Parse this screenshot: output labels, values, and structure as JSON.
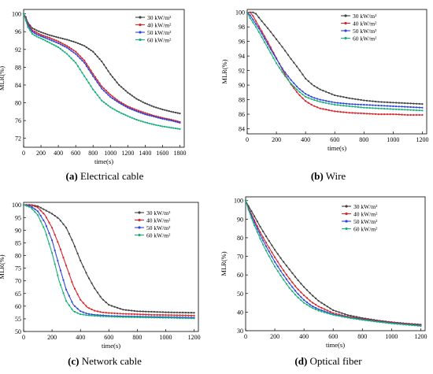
{
  "colors": {
    "30": "#404040",
    "40": "#d6262a",
    "50": "#2f45d8",
    "60": "#18b07a"
  },
  "chart_data": [
    {
      "type": "line",
      "panel_letter": "(a)",
      "caption": "Electrical cable",
      "xlabel": "time(s)",
      "ylabel": "MLR(%)",
      "xlim": [
        0,
        1850
      ],
      "ylim": [
        70,
        101
      ],
      "xticks": [
        0,
        200,
        400,
        600,
        800,
        1000,
        1200,
        1400,
        1600,
        1800
      ],
      "yticks": [
        72,
        76,
        80,
        84,
        88,
        92,
        96,
        100
      ],
      "legend_position": "top-right",
      "series": [
        {
          "name": "30 kW/m²",
          "color_key": "30",
          "x": [
            0,
            25,
            50,
            100,
            150,
            200,
            300,
            400,
            500,
            600,
            700,
            800,
            900,
            1000,
            1100,
            1200,
            1300,
            1400,
            1500,
            1600,
            1700,
            1800
          ],
          "y": [
            100,
            99.3,
            98,
            96.8,
            96.3,
            95.9,
            95.2,
            94.7,
            94.2,
            93.6,
            92.8,
            91.5,
            89.3,
            86.4,
            84.0,
            82.3,
            80.9,
            79.9,
            79.1,
            78.5,
            78.0,
            77.6
          ]
        },
        {
          "name": "40 kW/m²",
          "color_key": "40",
          "x": [
            0,
            25,
            50,
            100,
            150,
            200,
            300,
            400,
            500,
            600,
            700,
            800,
            900,
            1000,
            1100,
            1200,
            1300,
            1400,
            1500,
            1600,
            1700,
            1800
          ],
          "y": [
            100,
            99.0,
            97.7,
            96.3,
            95.8,
            95.3,
            94.6,
            93.8,
            92.8,
            91.5,
            89.5,
            86.5,
            83.7,
            81.8,
            80.3,
            79.2,
            78.4,
            77.7,
            77.1,
            76.6,
            76.2,
            75.7
          ]
        },
        {
          "name": "50 kW/m²",
          "color_key": "50",
          "x": [
            0,
            25,
            50,
            100,
            150,
            200,
            300,
            400,
            500,
            600,
            700,
            800,
            900,
            1000,
            1100,
            1200,
            1300,
            1400,
            1500,
            1600,
            1700,
            1800
          ],
          "y": [
            100,
            98.8,
            97.4,
            96.0,
            95.4,
            95.0,
            94.2,
            93.4,
            92.4,
            91.0,
            89.0,
            86.0,
            83.2,
            81.3,
            80.0,
            78.9,
            78.1,
            77.4,
            76.9,
            76.4,
            76.0,
            75.5
          ]
        },
        {
          "name": "60 kW/m²",
          "color_key": "60",
          "x": [
            0,
            25,
            50,
            100,
            150,
            200,
            300,
            400,
            500,
            600,
            700,
            800,
            900,
            1000,
            1100,
            1200,
            1300,
            1400,
            1500,
            1600,
            1700,
            1800
          ],
          "y": [
            100,
            98.5,
            97.0,
            95.5,
            94.9,
            94.5,
            93.5,
            92.5,
            91.0,
            89.0,
            86.0,
            83.0,
            80.5,
            79.0,
            77.9,
            77.0,
            76.2,
            75.6,
            75.1,
            74.7,
            74.4,
            74.1
          ]
        }
      ]
    },
    {
      "type": "line",
      "panel_letter": "(b)",
      "caption": "Wire",
      "xlabel": "time(s)",
      "ylabel": "MLR(%)",
      "xlim": [
        0,
        1230
      ],
      "ylim": [
        83.3,
        100.4
      ],
      "xticks": [
        0,
        200,
        400,
        600,
        800,
        1000,
        1200
      ],
      "yticks": [
        84,
        86,
        88,
        90,
        92,
        94,
        96,
        98,
        100
      ],
      "legend_position": "top-right",
      "series": [
        {
          "name": "30 kW/m²",
          "color_key": "30",
          "x": [
            0,
            20,
            40,
            60,
            80,
            100,
            150,
            200,
            250,
            300,
            350,
            400,
            450,
            500,
            600,
            700,
            800,
            900,
            1000,
            1100,
            1200
          ],
          "y": [
            100,
            100,
            100,
            99.8,
            99.3,
            98.8,
            97.6,
            96.3,
            95.0,
            93.6,
            92.3,
            90.9,
            90.0,
            89.4,
            88.6,
            88.2,
            87.9,
            87.7,
            87.6,
            87.5,
            87.4
          ]
        },
        {
          "name": "40 kW/m²",
          "color_key": "40",
          "x": [
            0,
            20,
            40,
            60,
            80,
            100,
            150,
            200,
            250,
            300,
            350,
            400,
            450,
            500,
            600,
            700,
            800,
            900,
            1000,
            1100,
            1200
          ],
          "y": [
            100,
            100,
            99.5,
            98.8,
            98.1,
            97.4,
            95.6,
            93.7,
            91.8,
            90.1,
            88.8,
            87.8,
            87.2,
            86.8,
            86.4,
            86.2,
            86.1,
            86.0,
            86.0,
            85.9,
            85.9
          ]
        },
        {
          "name": "50 kW/m²",
          "color_key": "50",
          "x": [
            0,
            20,
            40,
            60,
            80,
            100,
            150,
            200,
            250,
            300,
            350,
            400,
            450,
            500,
            600,
            700,
            800,
            900,
            1000,
            1100,
            1200
          ],
          "y": [
            100,
            99.6,
            99.0,
            98.4,
            97.8,
            97.1,
            95.3,
            93.6,
            92.0,
            90.7,
            89.6,
            88.8,
            88.3,
            88.0,
            87.6,
            87.4,
            87.3,
            87.2,
            87.1,
            87.0,
            86.9
          ]
        },
        {
          "name": "60 kW/m²",
          "color_key": "60",
          "x": [
            0,
            20,
            40,
            60,
            80,
            100,
            150,
            200,
            250,
            300,
            350,
            400,
            450,
            500,
            600,
            700,
            800,
            900,
            1000,
            1100,
            1200
          ],
          "y": [
            100,
            99.2,
            98.6,
            98.0,
            97.3,
            96.6,
            94.8,
            93.0,
            91.5,
            90.2,
            89.2,
            88.4,
            88.0,
            87.7,
            87.3,
            87.1,
            86.9,
            86.8,
            86.7,
            86.6,
            86.5
          ]
        }
      ]
    },
    {
      "type": "line",
      "panel_letter": "(c)",
      "caption": "Network cable",
      "xlabel": "time(s)",
      "ylabel": "MLR(%)",
      "xlim": [
        0,
        1230
      ],
      "ylim": [
        50,
        101
      ],
      "xticks": [
        0,
        200,
        400,
        600,
        800,
        1000,
        1200
      ],
      "yticks": [
        50,
        55,
        60,
        65,
        70,
        75,
        80,
        85,
        90,
        95,
        100
      ],
      "legend_position": "top-right",
      "series": [
        {
          "name": "30 kW/m²",
          "color_key": "30",
          "x": [
            0,
            50,
            100,
            150,
            200,
            250,
            300,
            350,
            400,
            450,
            500,
            550,
            600,
            700,
            800,
            900,
            1000,
            1100,
            1200
          ],
          "y": [
            100,
            100,
            99.5,
            98.0,
            96.5,
            94.5,
            91.0,
            85.0,
            78.0,
            72.0,
            67.0,
            63.0,
            60.5,
            58.6,
            58.0,
            57.8,
            57.6,
            57.5,
            57.4
          ]
        },
        {
          "name": "40 kW/m²",
          "color_key": "40",
          "x": [
            0,
            50,
            100,
            150,
            200,
            250,
            300,
            350,
            400,
            450,
            500,
            550,
            600,
            700,
            800,
            900,
            1000,
            1100,
            1200
          ],
          "y": [
            100,
            100,
            99.0,
            96.0,
            91.0,
            84.0,
            76.0,
            68.0,
            62.5,
            59.5,
            58.2,
            57.6,
            57.3,
            57.0,
            56.8,
            56.6,
            56.5,
            56.4,
            56.3
          ]
        },
        {
          "name": "50 kW/m²",
          "color_key": "50",
          "x": [
            0,
            50,
            100,
            150,
            200,
            250,
            300,
            350,
            400,
            450,
            500,
            550,
            600,
            700,
            800,
            900,
            1000,
            1100,
            1200
          ],
          "y": [
            100,
            99.5,
            97.5,
            93.0,
            86.0,
            76.0,
            66.5,
            60.5,
            58.0,
            57.0,
            56.6,
            56.4,
            56.2,
            56.0,
            55.9,
            55.8,
            55.7,
            55.6,
            55.5
          ]
        },
        {
          "name": "60 kW/m²",
          "color_key": "60",
          "x": [
            0,
            50,
            100,
            150,
            200,
            250,
            300,
            350,
            400,
            450,
            500,
            550,
            600,
            700,
            800,
            900,
            1000,
            1100,
            1200
          ],
          "y": [
            100,
            99.0,
            96.0,
            90.0,
            81.0,
            70.0,
            62.0,
            58.0,
            56.8,
            56.4,
            56.2,
            56.0,
            55.9,
            55.7,
            55.6,
            55.5,
            55.4,
            55.3,
            55.2
          ]
        }
      ]
    },
    {
      "type": "line",
      "panel_letter": "(d)",
      "caption": "Optical fiber",
      "xlabel": "time(s)",
      "ylabel": "MLR(%)",
      "xlim": [
        0,
        1230
      ],
      "ylim": [
        30,
        102
      ],
      "xticks": [
        0,
        200,
        400,
        600,
        800,
        1000,
        1200
      ],
      "yticks": [
        30,
        40,
        50,
        60,
        70,
        80,
        90,
        100
      ],
      "legend_position": "top-right",
      "series": [
        {
          "name": "30 kW/m²",
          "color_key": "30",
          "x": [
            0,
            20,
            50,
            100,
            150,
            200,
            250,
            300,
            350,
            400,
            450,
            500,
            600,
            700,
            800,
            900,
            1000,
            1100,
            1200
          ],
          "y": [
            100,
            97.0,
            93.0,
            86.0,
            79.5,
            73.5,
            68.0,
            63.0,
            58.0,
            53.5,
            49.5,
            46.0,
            41.0,
            38.4,
            36.8,
            35.6,
            34.6,
            33.9,
            33.3
          ]
        },
        {
          "name": "40 kW/m²",
          "color_key": "40",
          "x": [
            0,
            20,
            50,
            100,
            150,
            200,
            250,
            300,
            350,
            400,
            450,
            500,
            600,
            700,
            800,
            900,
            1000,
            1100,
            1200
          ],
          "y": [
            100,
            96.0,
            91.0,
            83.0,
            76.0,
            69.5,
            63.5,
            58.0,
            53.0,
            49.0,
            45.5,
            43.0,
            39.5,
            37.6,
            36.3,
            35.3,
            34.4,
            33.7,
            33.0
          ]
        },
        {
          "name": "50 kW/m²",
          "color_key": "50",
          "x": [
            0,
            20,
            50,
            100,
            150,
            200,
            250,
            300,
            350,
            400,
            450,
            500,
            600,
            700,
            800,
            900,
            1000,
            1100,
            1200
          ],
          "y": [
            100,
            95.5,
            90.0,
            81.5,
            74.0,
            67.0,
            61.0,
            55.5,
            50.5,
            46.5,
            43.5,
            41.5,
            38.8,
            37.2,
            36.0,
            35.0,
            34.1,
            33.4,
            32.7
          ]
        },
        {
          "name": "60 kW/m²",
          "color_key": "60",
          "x": [
            0,
            20,
            50,
            100,
            150,
            200,
            250,
            300,
            350,
            400,
            450,
            500,
            600,
            700,
            800,
            900,
            1000,
            1100,
            1200
          ],
          "y": [
            100,
            95.0,
            88.5,
            79.5,
            71.5,
            64.5,
            58.5,
            53.0,
            48.5,
            45.0,
            42.5,
            40.8,
            38.5,
            37.0,
            35.8,
            34.8,
            33.9,
            33.2,
            32.5
          ]
        }
      ]
    }
  ]
}
